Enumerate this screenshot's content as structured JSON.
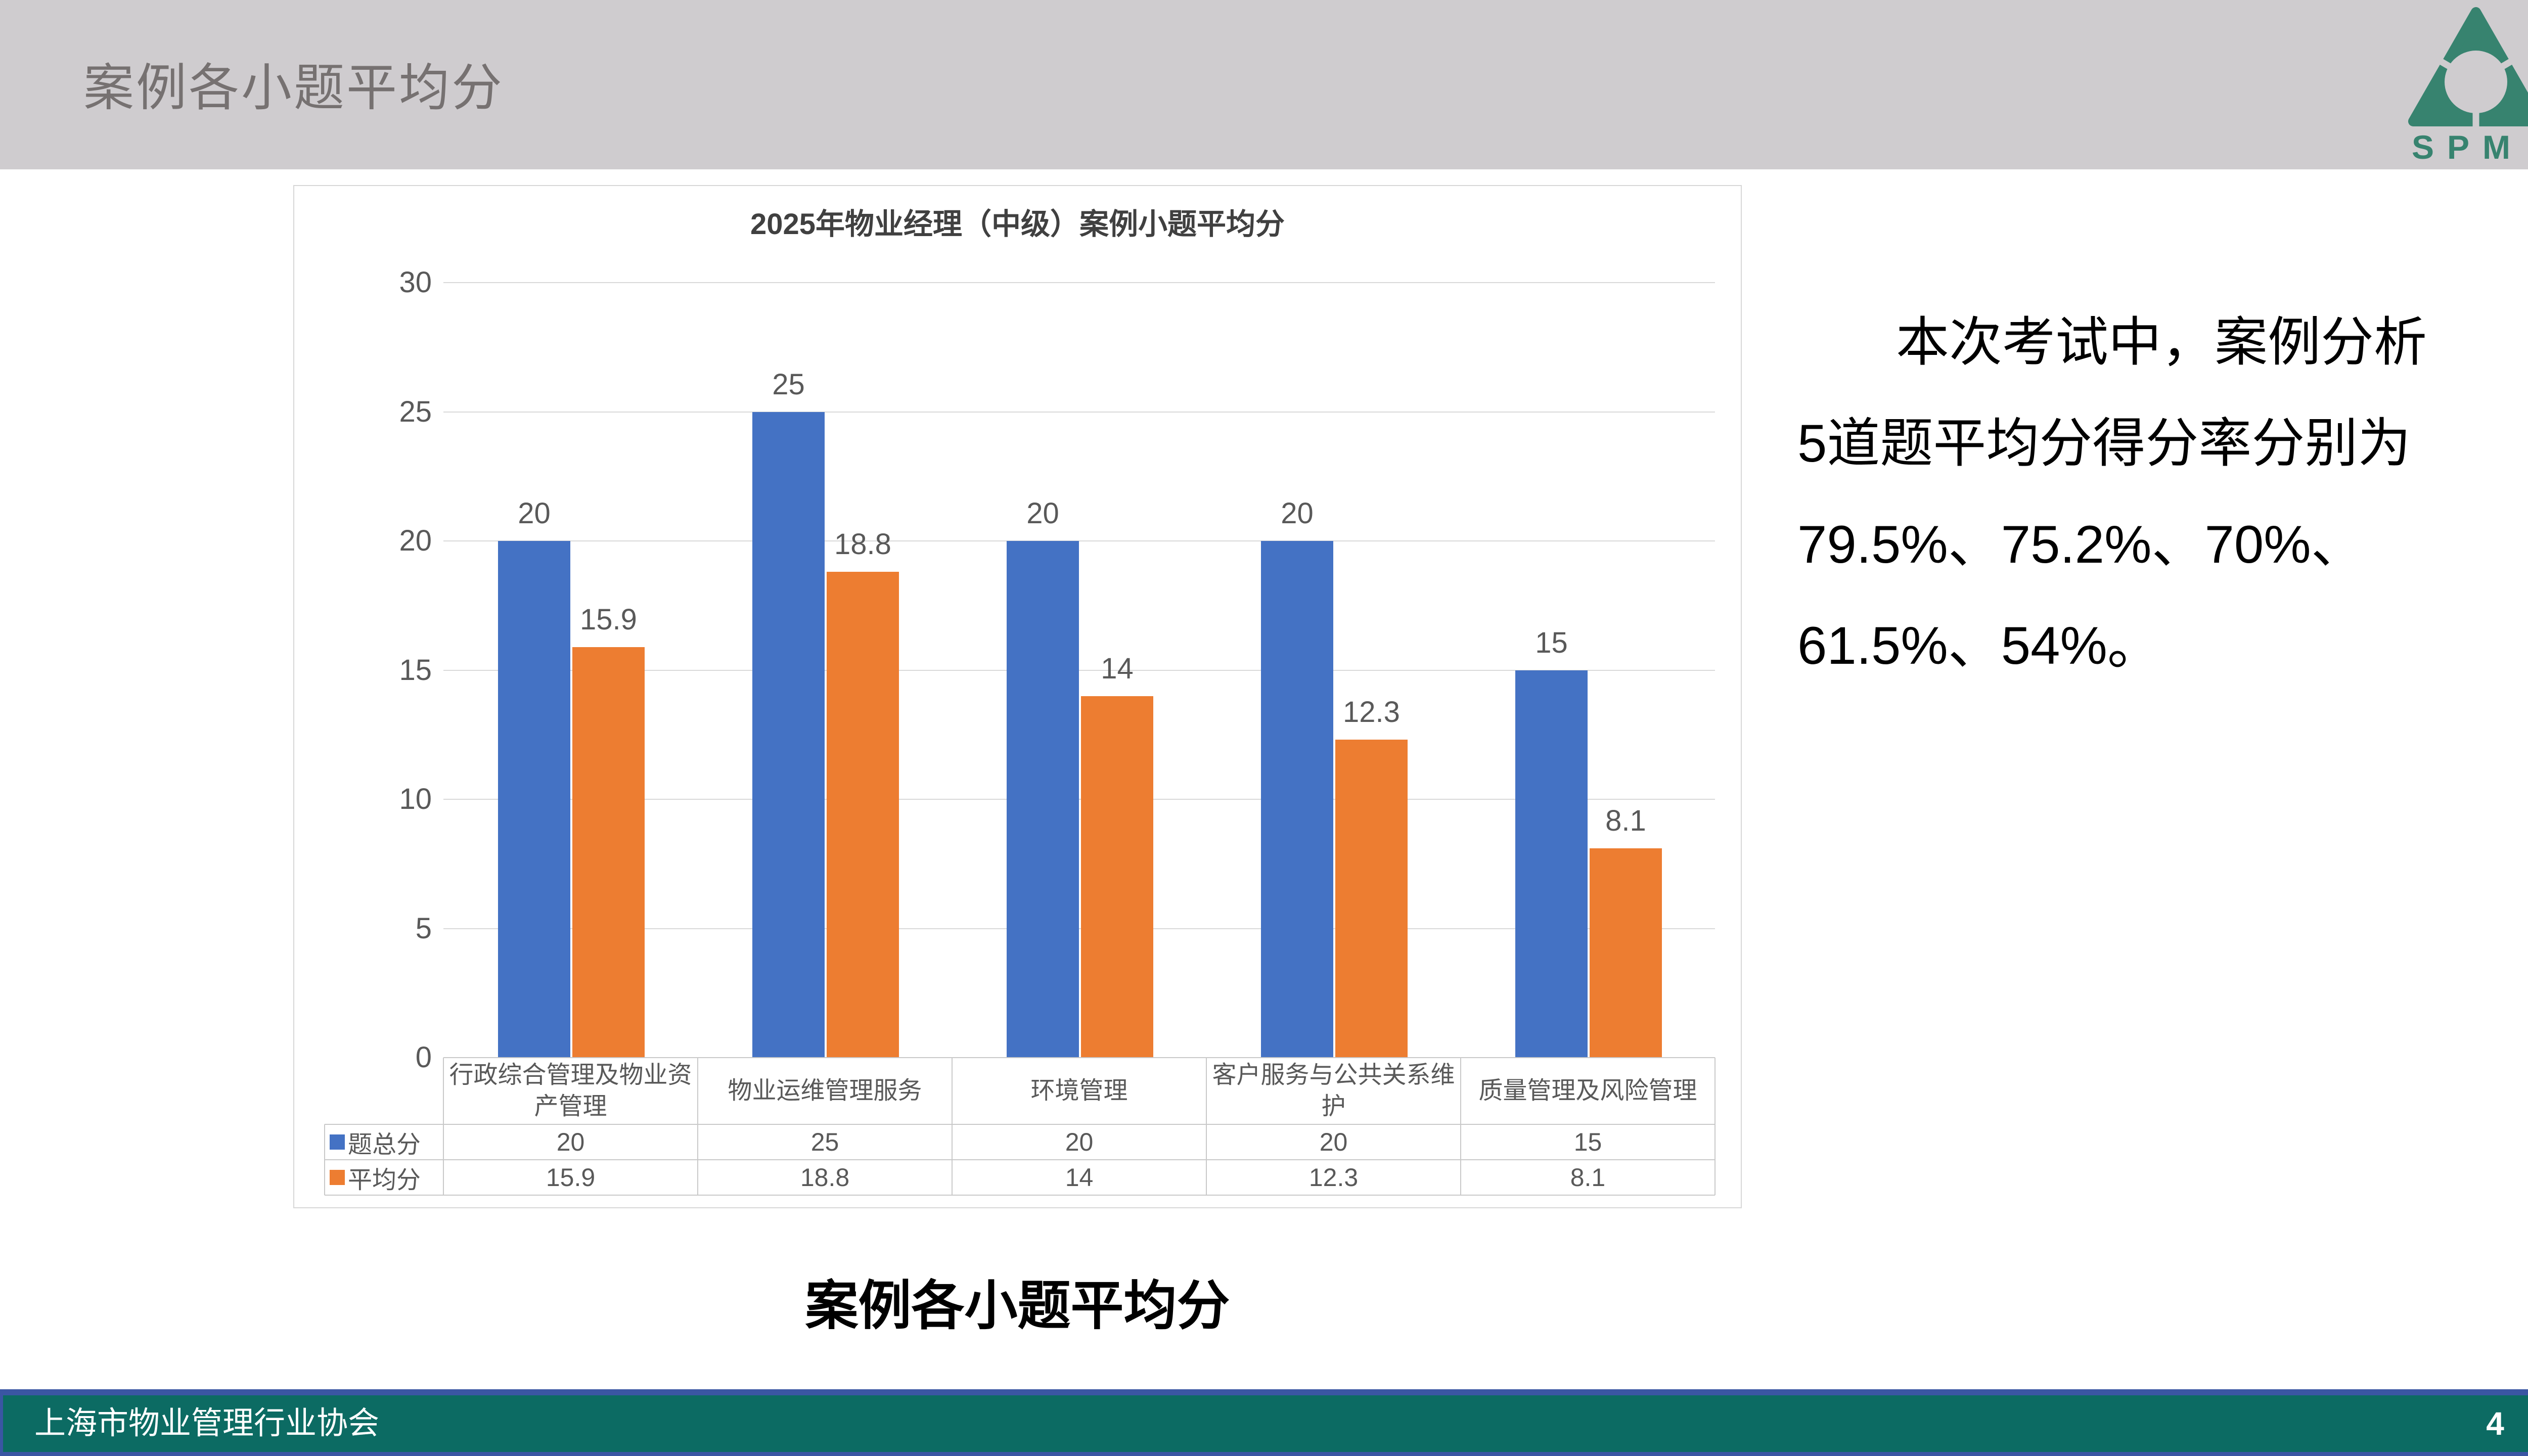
{
  "header": {
    "title": "案例各小题平均分"
  },
  "logo": {
    "text": "SPM",
    "registered": "®",
    "color": "#37836F"
  },
  "chart_data": {
    "type": "bar",
    "title": "2025年物业经理（中级）案例小题平均分",
    "categories": [
      "行政综合管理及物业资产管理",
      "物业运维管理服务",
      "环境管理",
      "客户服务与公共关系维护",
      "质量管理及风险管理"
    ],
    "series": [
      {
        "name": "题总分",
        "color": "#4472C4",
        "values": [
          20,
          25,
          20,
          20,
          15
        ]
      },
      {
        "name": "平均分",
        "color": "#ED7D31",
        "values": [
          15.9,
          18.8,
          14,
          12.3,
          8.1
        ]
      }
    ],
    "xlabel": "",
    "ylabel": "",
    "ylim": [
      0,
      30
    ],
    "y_ticks": [
      0,
      5,
      10,
      15,
      20,
      25,
      30
    ],
    "grid": true,
    "legend_position": "data-table-left",
    "data_table": true,
    "value_labels": true
  },
  "caption": "案例各小题平均分",
  "analysis": {
    "lines": [
      "本次考试中，案例分析",
      "5道题平均分得分率分别为",
      "79.5%、75.2%、70%、",
      "61.5%、54%。"
    ]
  },
  "footer": {
    "org": "上海市物业管理行业协会",
    "page": "4"
  },
  "colors": {
    "header_bg": "#CFCCCF",
    "header_text": "#767171",
    "logo_teal": "#37836F",
    "footer_teal": "#0C6B63",
    "footer_navy": "#3A56A3",
    "series_blue": "#4472C4",
    "series_orange": "#ED7D31",
    "gridline": "#D9D9D9",
    "table_border": "#C9C9C9",
    "text_gray": "#595959",
    "title_gray": "#404040"
  }
}
